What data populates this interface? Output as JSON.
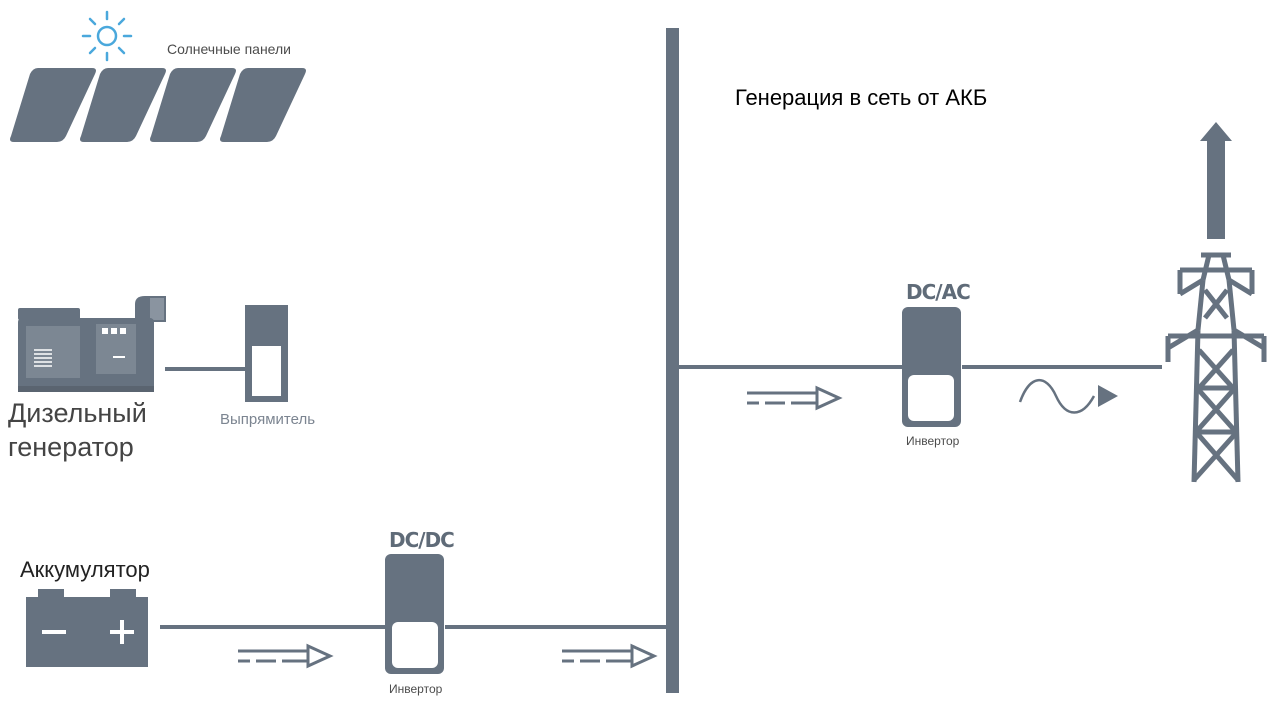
{
  "title": "Генерация в сеть от АКБ",
  "labels": {
    "solar_panels": "Солнечные панели",
    "diesel_generator_line1": "Дизельный",
    "diesel_generator_line2": "генератор",
    "rectifier": "Выпрямитель",
    "battery": "Аккумулятор",
    "dcdc": "DC/DC",
    "inverter_dcdc": "Инвертор",
    "dcac": "DC/AC",
    "inverter_dcac": "Инвертор"
  },
  "icons": {
    "sun": "sun-icon",
    "solar_panels": "solar-panels-icon",
    "diesel_generator": "diesel-generator-icon",
    "rectifier": "rectifier-icon",
    "battery": "battery-icon",
    "dcdc_converter": "dcdc-converter-icon",
    "dcac_inverter": "dcac-inverter-icon",
    "transmission_tower": "transmission-tower-icon",
    "dc_arrow": "dc-flow-arrow-icon",
    "ac_arrow": "ac-wave-arrow-icon",
    "up_arrow": "up-arrow-icon",
    "battery_minus": "−",
    "battery_plus": "+"
  },
  "colors": {
    "device": "#667280",
    "line": "#667280",
    "sun": "#4aa8dc",
    "text_dark": "#222222",
    "background": "#ffffff"
  }
}
